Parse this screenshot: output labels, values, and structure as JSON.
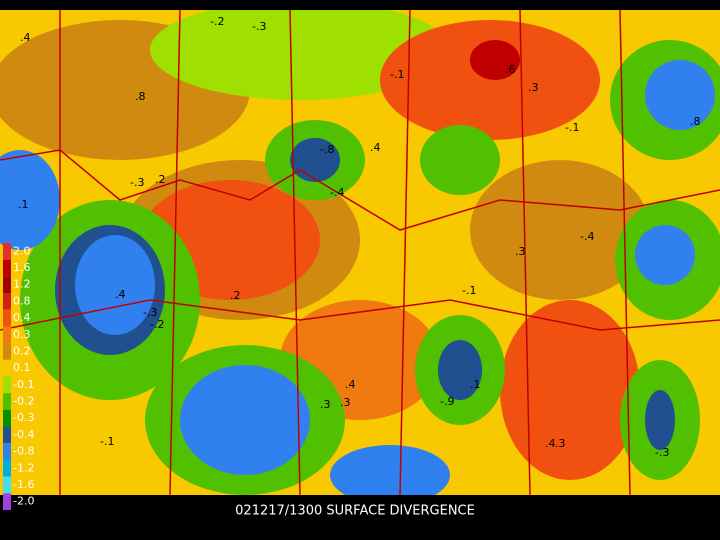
{
  "caption": "021217/1300 SURFACE DIVERGENCE",
  "color_scale": [
    {
      "label": "2.0",
      "color": "#e03030"
    },
    {
      "label": "1.6",
      "color": "#c00000"
    },
    {
      "label": "1.2",
      "color": "#a00000"
    },
    {
      "label": "0.8",
      "color": "#d02010"
    },
    {
      "label": "0.4",
      "color": "#f05010"
    },
    {
      "label": "0.3",
      "color": "#f07a10"
    },
    {
      "label": "0.2",
      "color": "#d08a10"
    },
    {
      "label": "0.1",
      "color": "#f8c800"
    },
    {
      "label": "-0.1",
      "color": "#a0e000"
    },
    {
      "label": "-0.2",
      "color": "#50c000"
    },
    {
      "label": "-0.3",
      "color": "#009000"
    },
    {
      "label": "-0.4",
      "color": "#205090"
    },
    {
      "label": "-0.8",
      "color": "#3080f0"
    },
    {
      "label": "-1.2",
      "color": "#00b0e0"
    },
    {
      "label": "-1.6",
      "color": "#40e0f0"
    },
    {
      "label": "-2.0",
      "color": "#a040e0"
    }
  ],
  "contour_labels": [
    "-.2",
    "-.3",
    ".4",
    ".8",
    ".6",
    "-.1",
    ".3",
    ".4",
    "-.8",
    ".8",
    "-.1",
    ".2",
    "-.3",
    "-.4",
    "-.4",
    ".4",
    ".2",
    ".3",
    "-.1",
    "-.2",
    "-.3",
    ".1",
    ".4",
    ".3",
    ".4",
    ".3",
    "-.9",
    "-.1",
    ".3",
    ".1",
    "-.3"
  ]
}
